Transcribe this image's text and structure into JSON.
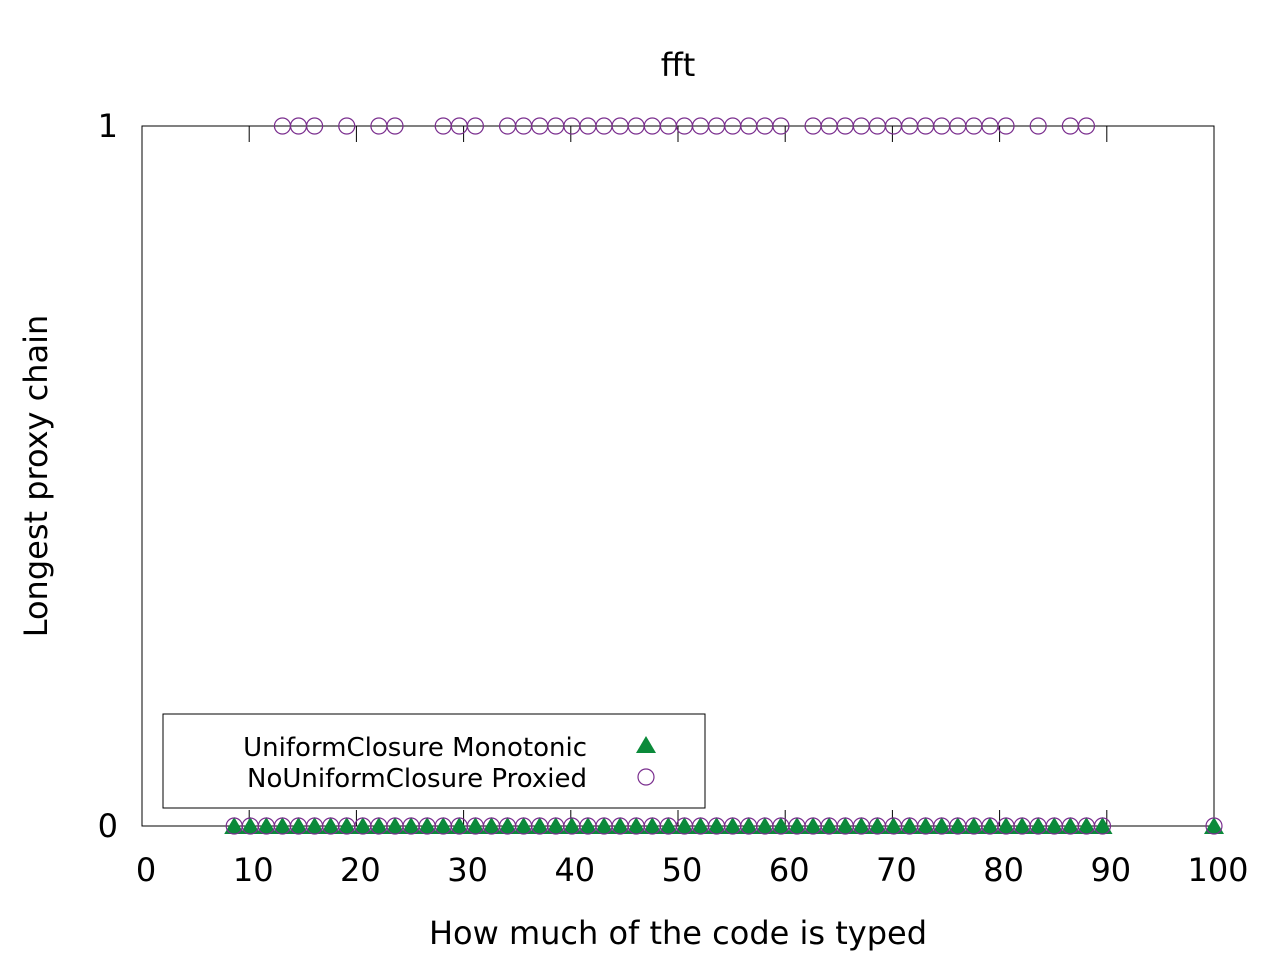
{
  "chart_data": {
    "type": "scatter",
    "title": "fft",
    "xlabel": "How much of the code is typed",
    "ylabel": "Longest proxy chain",
    "xlim": [
      0,
      100
    ],
    "ylim": [
      0,
      1
    ],
    "x_ticks": [
      "0",
      "10",
      "20",
      "30",
      "40",
      "50",
      "60",
      "70",
      "80",
      "90",
      "100"
    ],
    "y_ticks": [
      "0",
      "1"
    ],
    "grid": false,
    "legend_position": "bottom-left",
    "series": [
      {
        "name": "UniformClosure Monotonic",
        "marker": "filled-triangle",
        "color": "#0b8a3a",
        "points": [
          [
            8.6,
            0
          ],
          [
            10.1,
            0
          ],
          [
            11.6,
            0
          ],
          [
            13.1,
            0
          ],
          [
            14.6,
            0
          ],
          [
            16.1,
            0
          ],
          [
            17.6,
            0
          ],
          [
            19.1,
            0
          ],
          [
            20.6,
            0
          ],
          [
            22.1,
            0
          ],
          [
            23.6,
            0
          ],
          [
            25.1,
            0
          ],
          [
            26.6,
            0
          ],
          [
            28.1,
            0
          ],
          [
            29.6,
            0
          ],
          [
            31.1,
            0
          ],
          [
            32.6,
            0
          ],
          [
            34.1,
            0
          ],
          [
            35.6,
            0
          ],
          [
            37.1,
            0
          ],
          [
            38.6,
            0
          ],
          [
            40.1,
            0
          ],
          [
            41.6,
            0
          ],
          [
            43.1,
            0
          ],
          [
            44.6,
            0
          ],
          [
            46.1,
            0
          ],
          [
            47.6,
            0
          ],
          [
            49.1,
            0
          ],
          [
            50.6,
            0
          ],
          [
            52.1,
            0
          ],
          [
            53.6,
            0
          ],
          [
            55.1,
            0
          ],
          [
            56.6,
            0
          ],
          [
            58.1,
            0
          ],
          [
            59.6,
            0
          ],
          [
            61.1,
            0
          ],
          [
            62.6,
            0
          ],
          [
            64.1,
            0
          ],
          [
            65.6,
            0
          ],
          [
            67.1,
            0
          ],
          [
            68.6,
            0
          ],
          [
            70.1,
            0
          ],
          [
            71.6,
            0
          ],
          [
            73.1,
            0
          ],
          [
            74.6,
            0
          ],
          [
            76.1,
            0
          ],
          [
            77.6,
            0
          ],
          [
            79.1,
            0
          ],
          [
            80.6,
            0
          ],
          [
            82.1,
            0
          ],
          [
            83.6,
            0
          ],
          [
            85.1,
            0
          ],
          [
            86.6,
            0
          ],
          [
            88.1,
            0
          ],
          [
            89.6,
            0
          ],
          [
            100,
            0
          ]
        ]
      },
      {
        "name": "NoUniformClosure Proxied",
        "marker": "open-circle",
        "color": "#7a2e8e",
        "points": [
          [
            8.6,
            0
          ],
          [
            10.1,
            0
          ],
          [
            11.6,
            0
          ],
          [
            13.1,
            0
          ],
          [
            14.6,
            0
          ],
          [
            16.1,
            0
          ],
          [
            17.6,
            0
          ],
          [
            19.1,
            0
          ],
          [
            20.6,
            0
          ],
          [
            22.1,
            0
          ],
          [
            23.6,
            0
          ],
          [
            25.1,
            0
          ],
          [
            26.6,
            0
          ],
          [
            28.1,
            0
          ],
          [
            29.6,
            0
          ],
          [
            31.1,
            0
          ],
          [
            32.6,
            0
          ],
          [
            34.1,
            0
          ],
          [
            35.6,
            0
          ],
          [
            37.1,
            0
          ],
          [
            38.6,
            0
          ],
          [
            40.1,
            0
          ],
          [
            41.6,
            0
          ],
          [
            43.1,
            0
          ],
          [
            44.6,
            0
          ],
          [
            46.1,
            0
          ],
          [
            47.6,
            0
          ],
          [
            49.1,
            0
          ],
          [
            50.6,
            0
          ],
          [
            52.1,
            0
          ],
          [
            53.6,
            0
          ],
          [
            55.1,
            0
          ],
          [
            56.6,
            0
          ],
          [
            58.1,
            0
          ],
          [
            59.6,
            0
          ],
          [
            61.1,
            0
          ],
          [
            62.6,
            0
          ],
          [
            64.1,
            0
          ],
          [
            65.6,
            0
          ],
          [
            67.1,
            0
          ],
          [
            68.6,
            0
          ],
          [
            70.1,
            0
          ],
          [
            71.6,
            0
          ],
          [
            73.1,
            0
          ],
          [
            74.6,
            0
          ],
          [
            76.1,
            0
          ],
          [
            77.6,
            0
          ],
          [
            79.1,
            0
          ],
          [
            80.6,
            0
          ],
          [
            82.1,
            0
          ],
          [
            83.6,
            0
          ],
          [
            85.1,
            0
          ],
          [
            86.6,
            0
          ],
          [
            88.1,
            0
          ],
          [
            89.6,
            0
          ],
          [
            100,
            0
          ],
          [
            13.1,
            1
          ],
          [
            14.6,
            1
          ],
          [
            16.1,
            1
          ],
          [
            19.1,
            1
          ],
          [
            22.1,
            1
          ],
          [
            23.6,
            1
          ],
          [
            28.1,
            1
          ],
          [
            29.6,
            1
          ],
          [
            31.1,
            1
          ],
          [
            34.1,
            1
          ],
          [
            35.6,
            1
          ],
          [
            37.1,
            1
          ],
          [
            38.6,
            1
          ],
          [
            40.1,
            1
          ],
          [
            41.6,
            1
          ],
          [
            43.1,
            1
          ],
          [
            44.6,
            1
          ],
          [
            46.1,
            1
          ],
          [
            47.6,
            1
          ],
          [
            49.1,
            1
          ],
          [
            50.6,
            1
          ],
          [
            52.1,
            1
          ],
          [
            53.6,
            1
          ],
          [
            55.1,
            1
          ],
          [
            56.6,
            1
          ],
          [
            58.1,
            1
          ],
          [
            59.6,
            1
          ],
          [
            62.6,
            1
          ],
          [
            64.1,
            1
          ],
          [
            65.6,
            1
          ],
          [
            67.1,
            1
          ],
          [
            68.6,
            1
          ],
          [
            70.1,
            1
          ],
          [
            71.6,
            1
          ],
          [
            73.1,
            1
          ],
          [
            74.6,
            1
          ],
          [
            76.1,
            1
          ],
          [
            77.6,
            1
          ],
          [
            79.1,
            1
          ],
          [
            80.6,
            1
          ],
          [
            83.6,
            1
          ],
          [
            86.6,
            1
          ],
          [
            88.1,
            1
          ]
        ]
      }
    ]
  }
}
